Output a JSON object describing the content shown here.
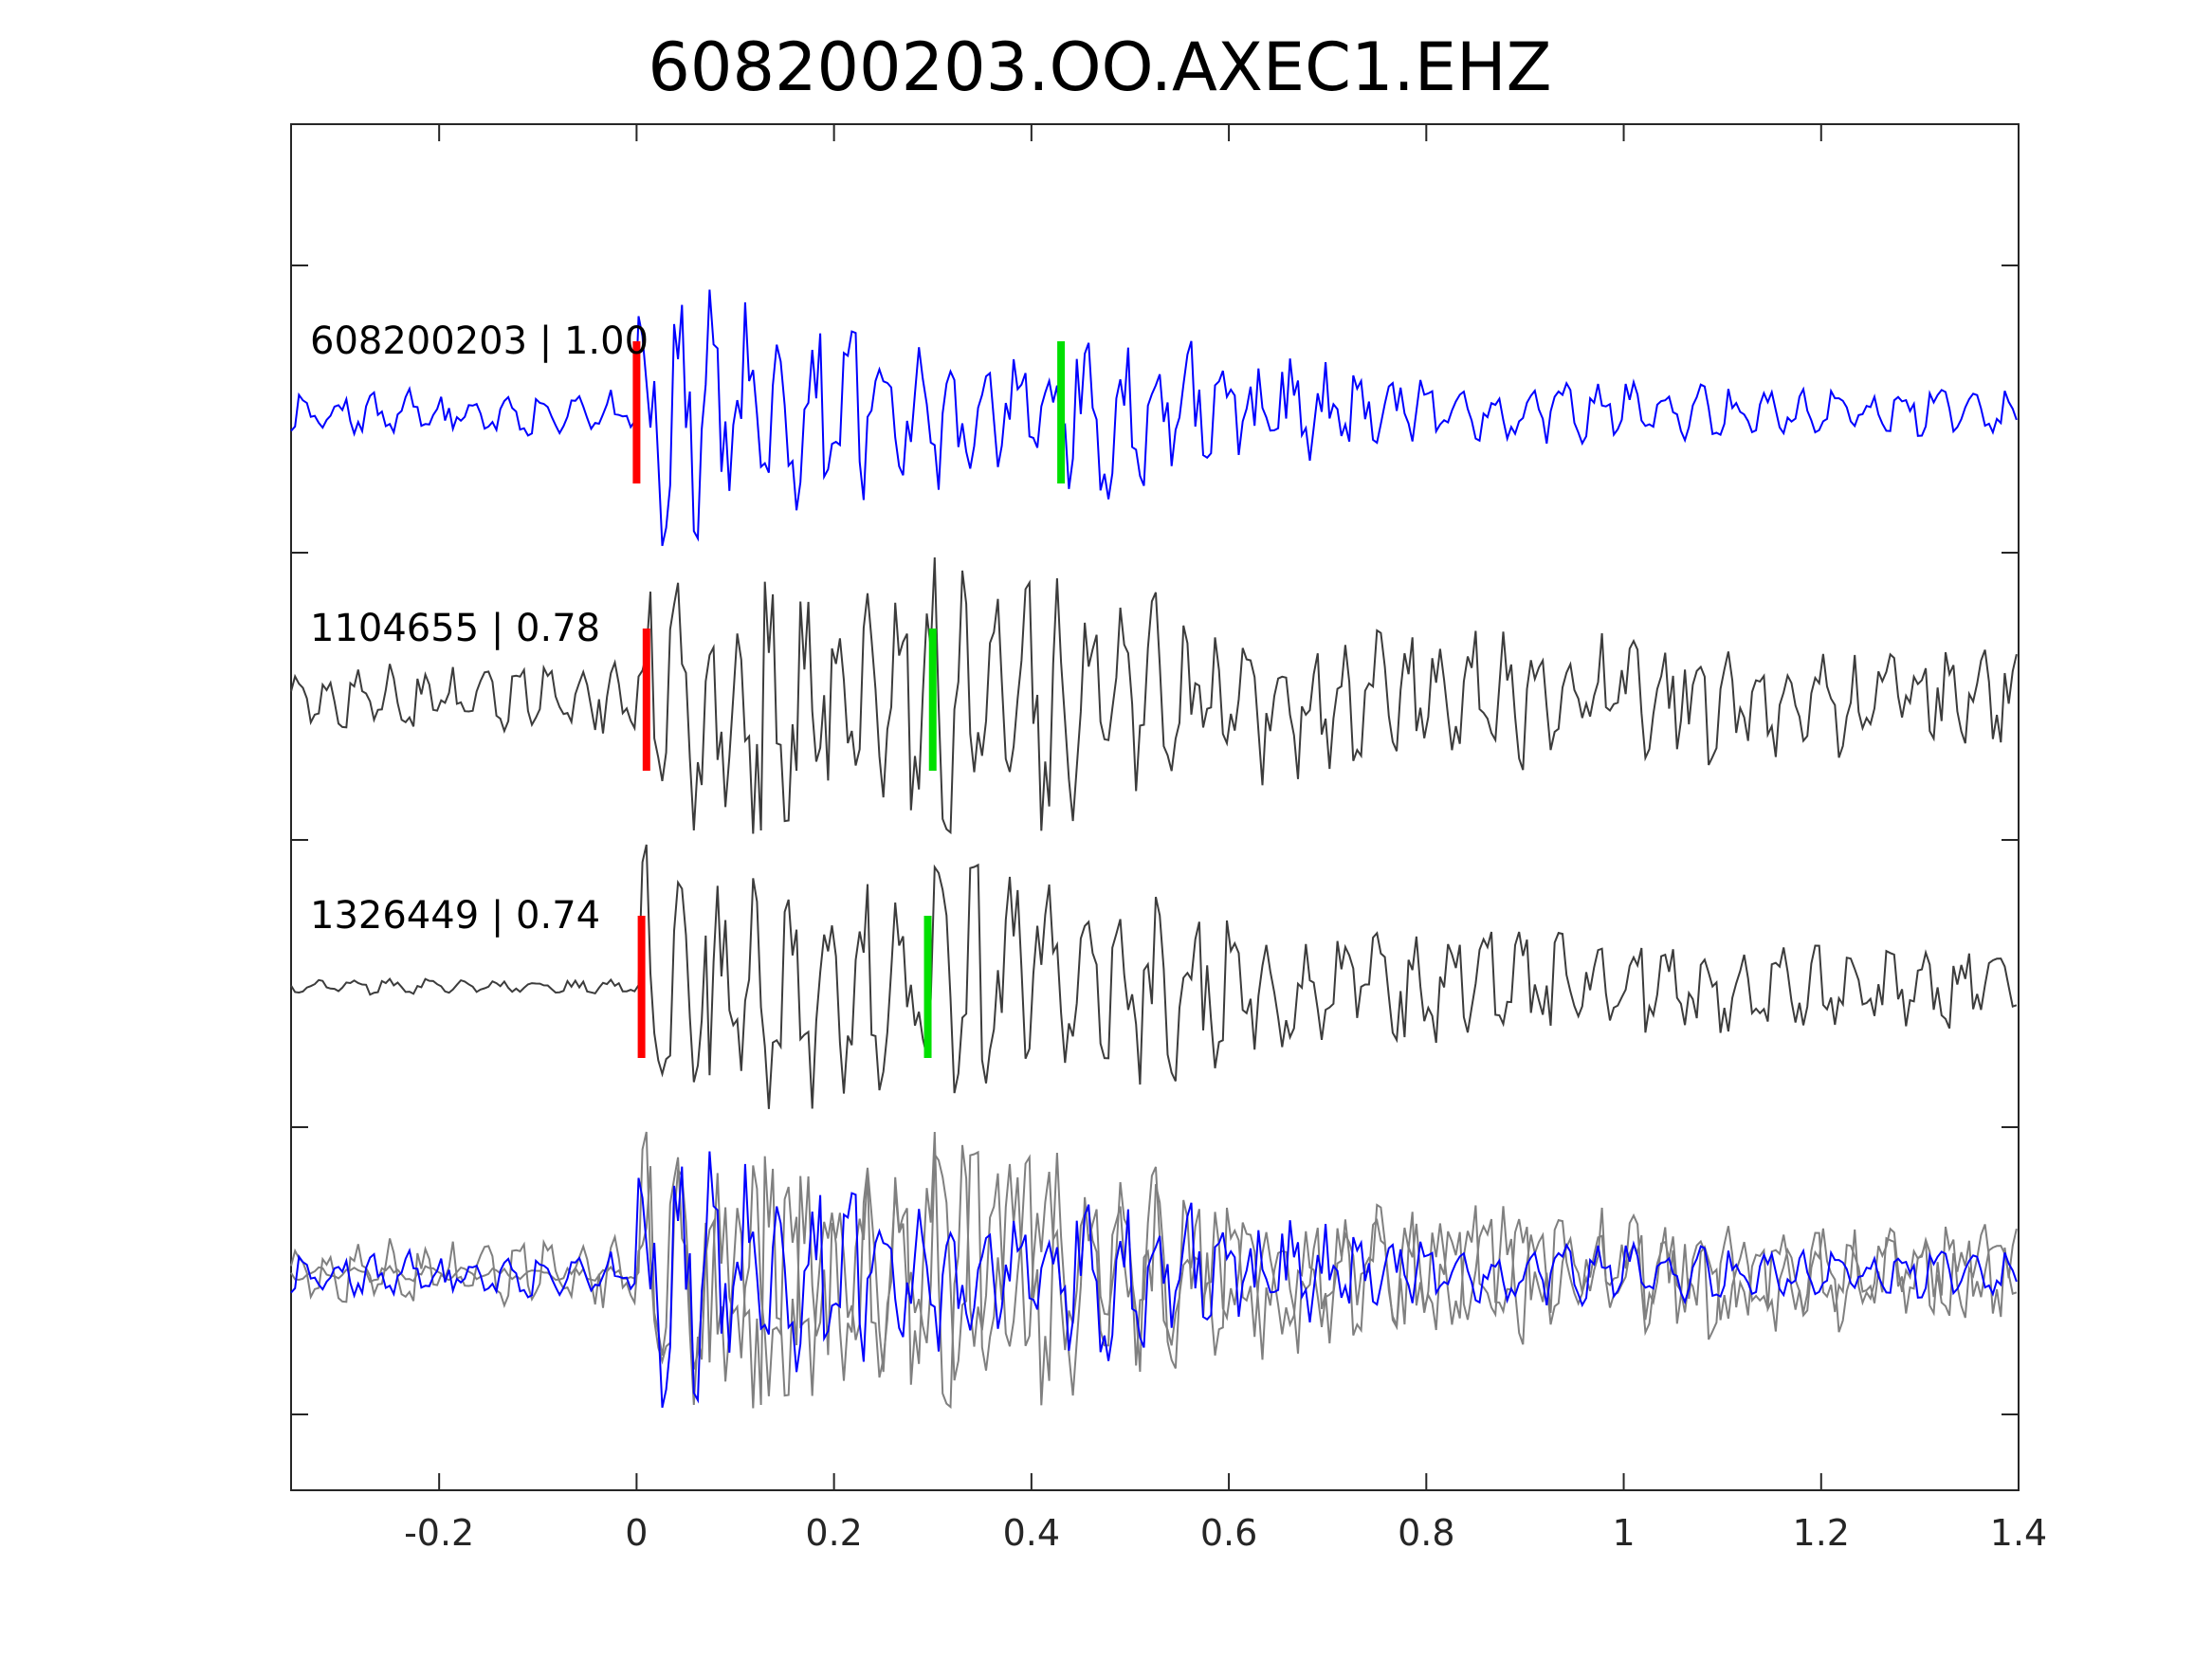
{
  "chart_data": {
    "type": "line",
    "title": "608200203.OO.AXEC1.EHZ",
    "xlabel": "",
    "ylabel": "",
    "xlim": [
      -0.35,
      1.4
    ],
    "grid": false,
    "x_ticks": [
      {
        "value": -0.2,
        "label": "-0.2"
      },
      {
        "value": 0,
        "label": "0"
      },
      {
        "value": 0.2,
        "label": "0.2"
      },
      {
        "value": 0.4,
        "label": "0.4"
      },
      {
        "value": 0.6,
        "label": "0.6"
      },
      {
        "value": 0.8,
        "label": "0.8"
      },
      {
        "value": 1.0,
        "label": "1"
      },
      {
        "value": 1.2,
        "label": "1.2"
      },
      {
        "value": 1.4,
        "label": "1.4"
      }
    ],
    "series": [
      {
        "name": "608200203 | 1.00",
        "color": "#0000ff",
        "p_pick": 0.0,
        "s_pick": 0.43,
        "seed": 11,
        "pre_amp": 0.14,
        "peak_amp": 0.95,
        "decay": 3.2,
        "coda_amp": 0.16,
        "freq": 29
      },
      {
        "name": "1104655 | 0.78",
        "color": "#3c3c3c",
        "p_pick": 0.01,
        "s_pick": 0.3,
        "seed": 23,
        "pre_amp": 0.22,
        "peak_amp": 0.95,
        "decay": 1.8,
        "coda_amp": 0.3,
        "freq": 31
      },
      {
        "name": "1326449 | 0.74",
        "color": "#3c3c3c",
        "p_pick": 0.005,
        "s_pick": 0.295,
        "seed": 37,
        "pre_amp": 0.05,
        "peak_amp": 0.9,
        "decay": 1.6,
        "coda_amp": 0.18,
        "freq": 27
      }
    ],
    "overlay": {
      "colors": [
        "#808080",
        "#808080",
        "#0000ff"
      ]
    },
    "pick_colors": {
      "p": "#ff0000",
      "s": "#00e000"
    }
  }
}
